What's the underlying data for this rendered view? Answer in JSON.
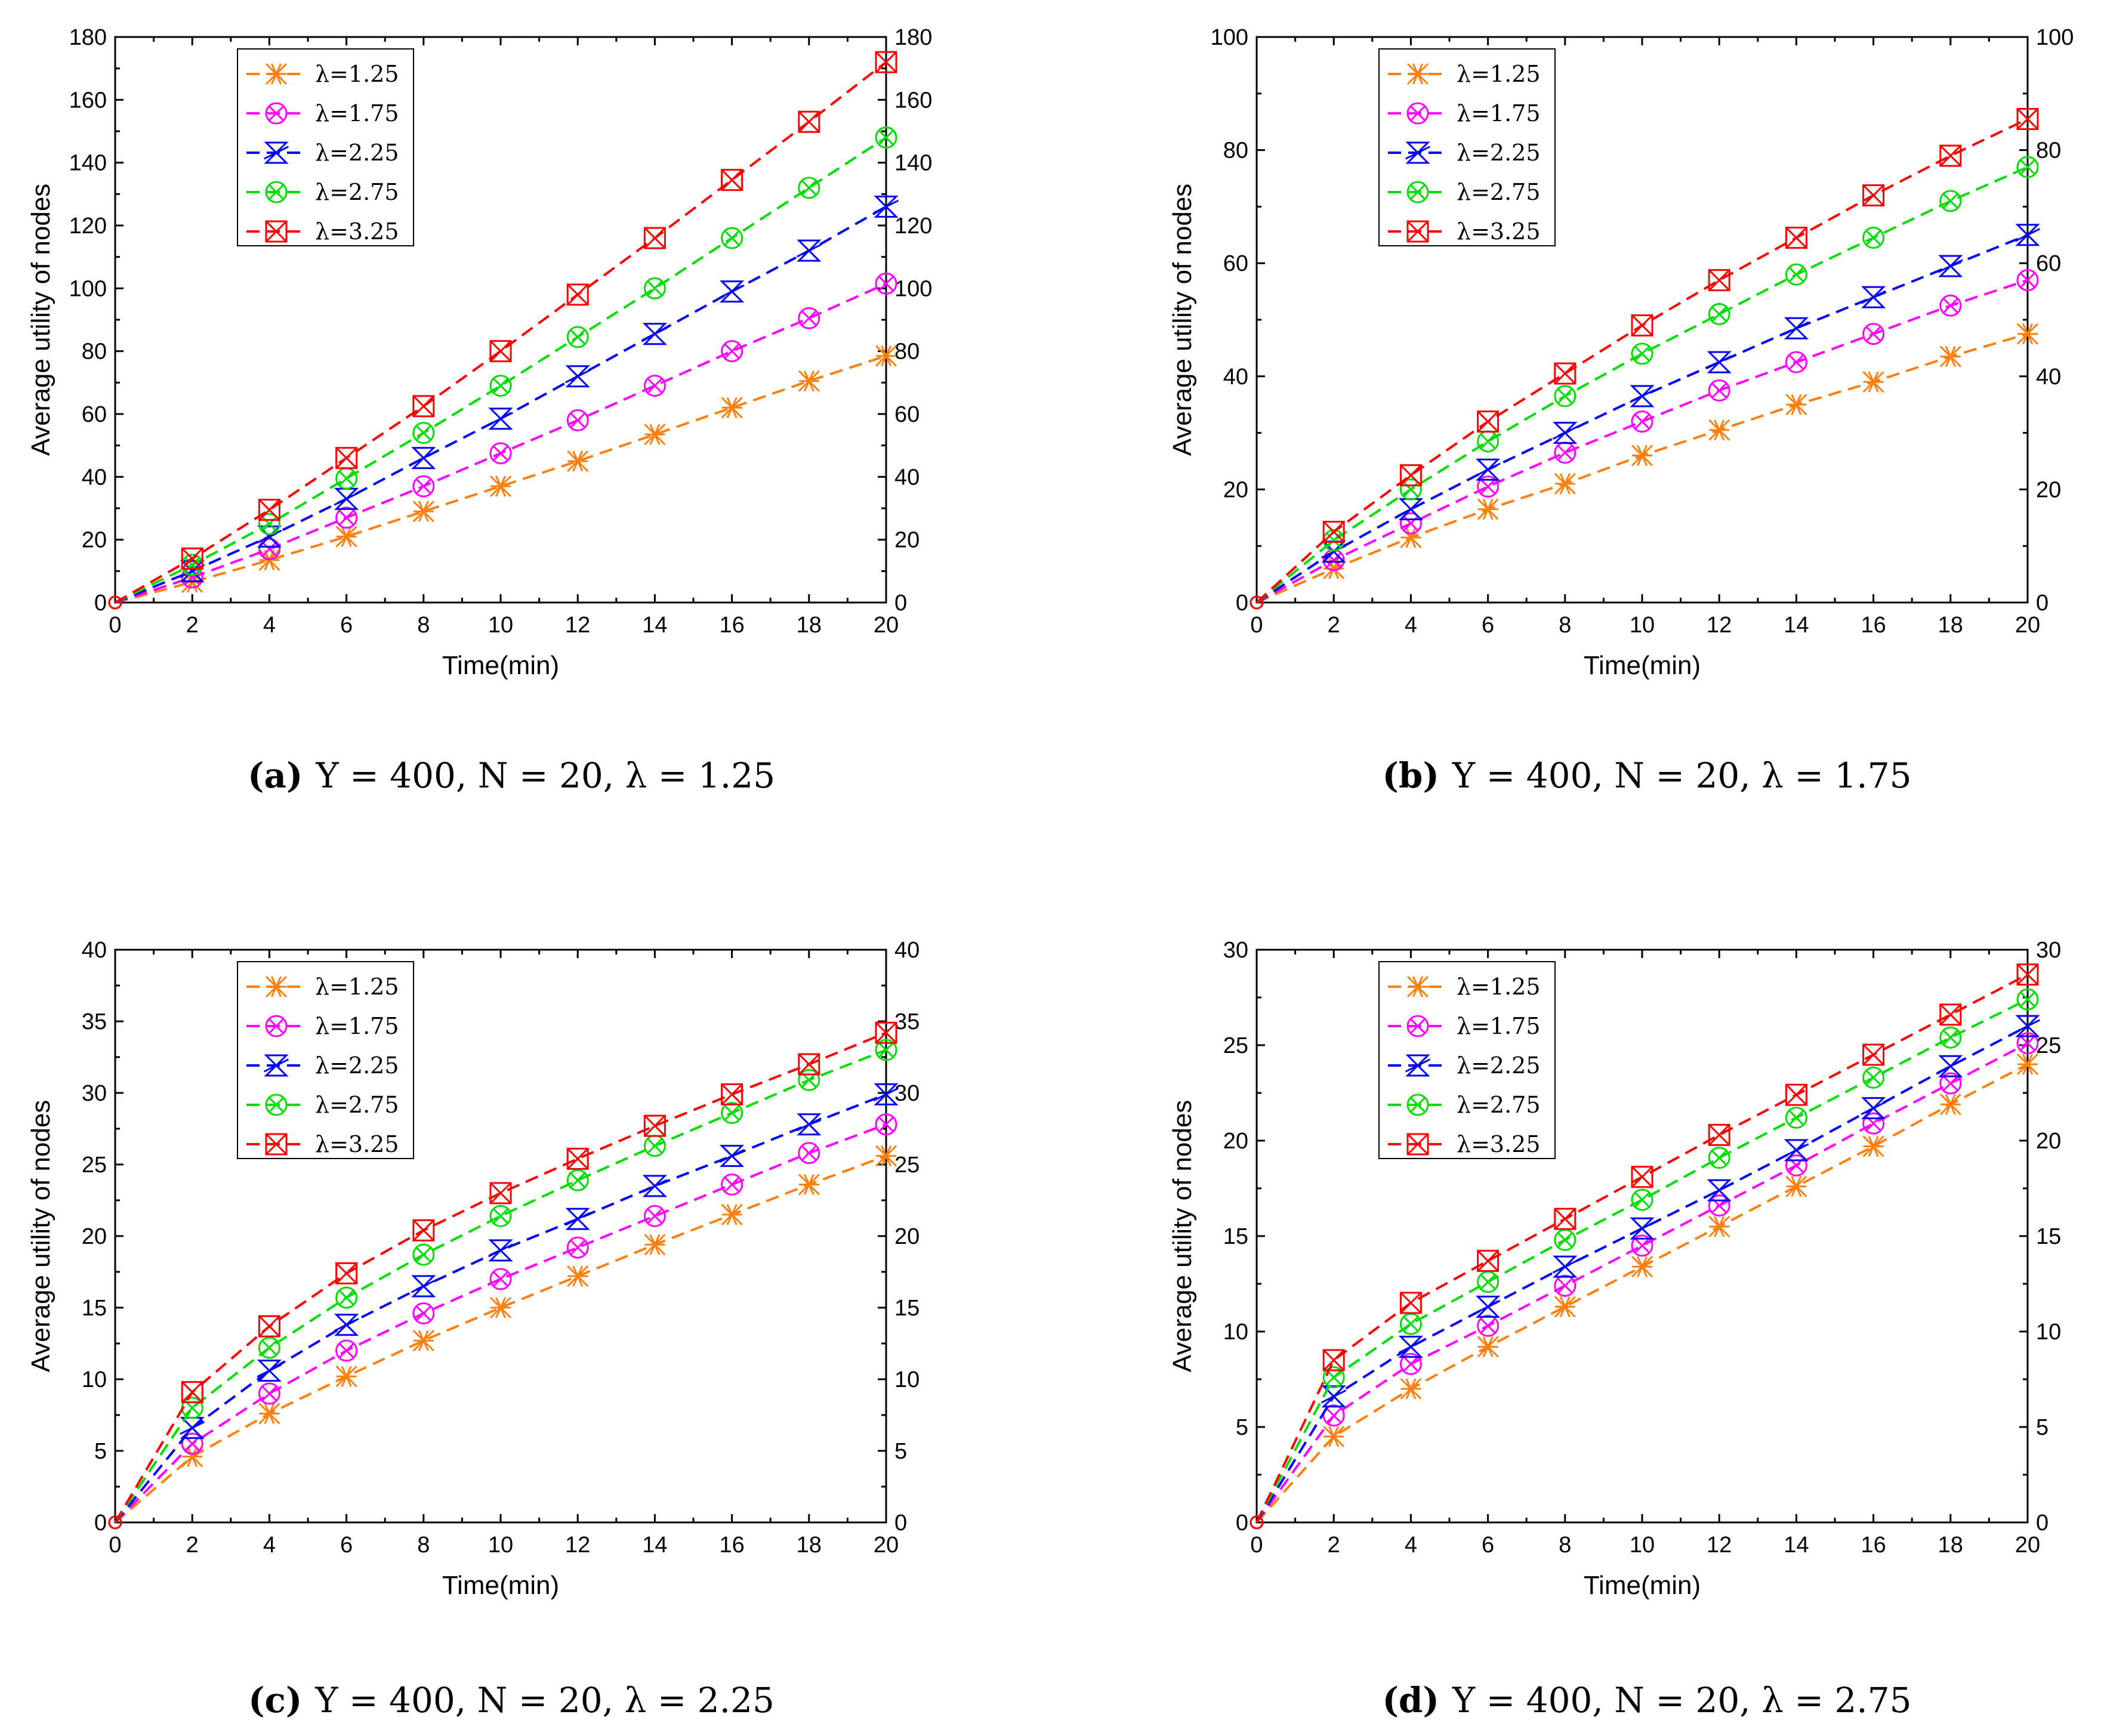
{
  "figure": {
    "series_colors": {
      "λ=1.25": "#ff7f0e",
      "λ=1.75": "#ff00ff",
      "λ=2.25": "#0000ff",
      "λ=2.75": "#00dd00",
      "λ=3.25": "#ff0000"
    }
  },
  "chart_data": [
    {
      "type": "line",
      "caption": {
        "label": "(a)",
        "text": "Y = 400, N = 20, λ = 1.25"
      },
      "xlabel": "Time(min)",
      "ylabel": "Average utility of nodes",
      "xlim": [
        0,
        20
      ],
      "ylim": [
        0,
        180
      ],
      "xticks": [
        0,
        2,
        4,
        6,
        8,
        10,
        12,
        14,
        16,
        18,
        20
      ],
      "yticks": [
        0,
        20,
        40,
        60,
        80,
        100,
        120,
        140,
        160,
        180
      ],
      "legend_position": "top-left",
      "x": [
        0,
        2,
        4,
        6,
        8,
        10,
        12,
        14,
        16,
        18,
        20
      ],
      "series": [
        {
          "name": "λ=1.25",
          "marker": "asterisk",
          "values": [
            0,
            6.5,
            13.5,
            21,
            29,
            37,
            45,
            53.5,
            62,
            70.5,
            78.5
          ]
        },
        {
          "name": "λ=1.75",
          "marker": "circle-x",
          "values": [
            0,
            8,
            17,
            27,
            37,
            47.5,
            58,
            69,
            80,
            90.5,
            101.5
          ]
        },
        {
          "name": "λ=2.25",
          "marker": "hourglass",
          "values": [
            0,
            10,
            21,
            33,
            46,
            58.5,
            72,
            85.5,
            99,
            112,
            126
          ]
        },
        {
          "name": "λ=2.75",
          "marker": "circle-x",
          "values": [
            0,
            12,
            25,
            39.5,
            54,
            69,
            84.5,
            100,
            116,
            132,
            148
          ]
        },
        {
          "name": "λ=3.25",
          "marker": "square-x",
          "values": [
            0,
            14,
            29.5,
            46,
            62.5,
            80,
            98,
            116,
            134.5,
            153,
            172
          ]
        }
      ]
    },
    {
      "type": "line",
      "caption": {
        "label": "(b)",
        "text": "Y = 400, N = 20, λ = 1.75"
      },
      "xlabel": "Time(min)",
      "ylabel": "Average utility of nodes",
      "xlim": [
        0,
        20
      ],
      "ylim": [
        0,
        100
      ],
      "xticks": [
        0,
        2,
        4,
        6,
        8,
        10,
        12,
        14,
        16,
        18,
        20
      ],
      "yticks": [
        0,
        20,
        40,
        60,
        80,
        100
      ],
      "legend_position": "top-left",
      "x": [
        0,
        2,
        4,
        6,
        8,
        10,
        12,
        14,
        16,
        18,
        20
      ],
      "series": [
        {
          "name": "λ=1.25",
          "marker": "asterisk",
          "values": [
            0,
            6,
            11.5,
            16.5,
            21,
            26,
            30.5,
            35,
            39,
            43.5,
            47.5
          ]
        },
        {
          "name": "λ=1.75",
          "marker": "circle-x",
          "values": [
            0,
            7.5,
            14,
            20.5,
            26.5,
            32,
            37.5,
            42.5,
            47.5,
            52.5,
            57
          ]
        },
        {
          "name": "λ=2.25",
          "marker": "hourglass",
          "values": [
            0,
            9,
            16.5,
            23.5,
            30,
            36.5,
            42.5,
            48.5,
            54,
            59.5,
            65
          ]
        },
        {
          "name": "λ=2.75",
          "marker": "circle-x",
          "values": [
            0,
            11,
            20,
            28.5,
            36.5,
            44,
            51,
            58,
            64.5,
            71,
            77
          ]
        },
        {
          "name": "λ=3.25",
          "marker": "square-x",
          "values": [
            0,
            12.5,
            22.5,
            32,
            40.5,
            49,
            57,
            64.5,
            72,
            79,
            85.5
          ]
        }
      ]
    },
    {
      "type": "line",
      "caption": {
        "label": "(c)",
        "text": "Y = 400, N = 20, λ = 2.25"
      },
      "xlabel": "Time(min)",
      "ylabel": "Average utility of nodes",
      "xlim": [
        0,
        20
      ],
      "ylim": [
        0,
        40
      ],
      "xticks": [
        0,
        2,
        4,
        6,
        8,
        10,
        12,
        14,
        16,
        18,
        20
      ],
      "yticks": [
        0,
        5,
        10,
        15,
        20,
        25,
        30,
        35,
        40
      ],
      "legend_position": "top-left",
      "x": [
        0,
        2,
        4,
        6,
        8,
        10,
        12,
        14,
        16,
        18,
        20
      ],
      "series": [
        {
          "name": "λ=1.25",
          "marker": "asterisk",
          "values": [
            0,
            4.6,
            7.6,
            10.2,
            12.7,
            15,
            17.2,
            19.4,
            21.5,
            23.6,
            25.6
          ]
        },
        {
          "name": "λ=1.75",
          "marker": "circle-x",
          "values": [
            0,
            5.5,
            9,
            12,
            14.6,
            17,
            19.2,
            21.4,
            23.6,
            25.8,
            27.8
          ]
        },
        {
          "name": "λ=2.25",
          "marker": "hourglass",
          "values": [
            0,
            6.6,
            10.6,
            13.8,
            16.5,
            19,
            21.2,
            23.5,
            25.6,
            27.8,
            29.9
          ]
        },
        {
          "name": "λ=2.75",
          "marker": "circle-x",
          "values": [
            0,
            8,
            12.2,
            15.7,
            18.7,
            21.4,
            23.9,
            26.3,
            28.6,
            30.9,
            33
          ]
        },
        {
          "name": "λ=3.25",
          "marker": "square-x",
          "values": [
            0,
            9.1,
            13.7,
            17.4,
            20.4,
            23,
            25.4,
            27.7,
            29.9,
            32,
            34.2
          ]
        }
      ]
    },
    {
      "type": "line",
      "caption": {
        "label": "(d)",
        "text": "Y = 400, N = 20, λ = 2.75"
      },
      "xlabel": "Time(min)",
      "ylabel": "Average utility of nodes",
      "xlim": [
        0,
        20
      ],
      "ylim": [
        0,
        30
      ],
      "xticks": [
        0,
        2,
        4,
        6,
        8,
        10,
        12,
        14,
        16,
        18,
        20
      ],
      "yticks": [
        0,
        5,
        10,
        15,
        20,
        25,
        30
      ],
      "legend_position": "top-left",
      "x": [
        0,
        2,
        4,
        6,
        8,
        10,
        12,
        14,
        16,
        18,
        20
      ],
      "series": [
        {
          "name": "λ=1.25",
          "marker": "asterisk",
          "values": [
            0,
            4.5,
            7,
            9.2,
            11.3,
            13.4,
            15.5,
            17.6,
            19.7,
            21.9,
            24
          ]
        },
        {
          "name": "λ=1.75",
          "marker": "circle-x",
          "values": [
            0,
            5.6,
            8.3,
            10.3,
            12.4,
            14.5,
            16.6,
            18.7,
            20.9,
            23,
            25.1
          ]
        },
        {
          "name": "λ=2.25",
          "marker": "hourglass",
          "values": [
            0,
            6.6,
            9.2,
            11.3,
            13.4,
            15.4,
            17.4,
            19.5,
            21.7,
            23.9,
            26
          ]
        },
        {
          "name": "λ=2.75",
          "marker": "circle-x",
          "values": [
            0,
            7.6,
            10.4,
            12.6,
            14.8,
            16.9,
            19.1,
            21.2,
            23.3,
            25.4,
            27.4
          ]
        },
        {
          "name": "λ=3.25",
          "marker": "square-x",
          "values": [
            0,
            8.5,
            11.5,
            13.7,
            15.9,
            18.1,
            20.3,
            22.4,
            24.5,
            26.6,
            28.7
          ]
        }
      ]
    }
  ]
}
